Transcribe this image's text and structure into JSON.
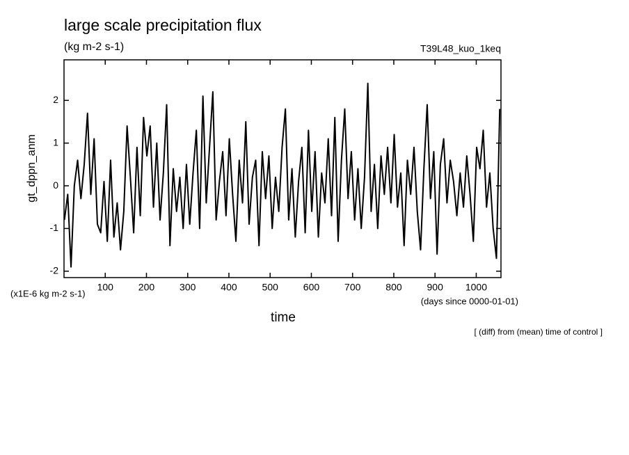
{
  "chart_data": {
    "type": "line",
    "title": "large scale precipitation flux",
    "subtitle": "(kg m-2 s-1)",
    "run_label": "T39L48_kuo_1keq",
    "y_label": "gt_dppn_anm",
    "y_unit": "(x1E-6 kg m-2 s-1)",
    "x_label": "time",
    "x_unit": "(days since 0000-01-01)",
    "annotation": "[ (diff) from (mean) time of control ]",
    "color": "#000000",
    "xlim": [
      0,
      1060
    ],
    "ylim": [
      -2.15,
      2.95
    ],
    "xticks": [
      100,
      200,
      300,
      400,
      500,
      600,
      700,
      800,
      900,
      1000
    ],
    "yticks": [
      -2,
      -1,
      0,
      1,
      2
    ],
    "x": [
      1,
      9,
      17,
      25,
      33,
      41,
      49,
      57,
      65,
      73,
      81,
      89,
      97,
      105,
      113,
      121,
      129,
      137,
      145,
      153,
      161,
      169,
      177,
      185,
      193,
      201,
      209,
      217,
      225,
      233,
      241,
      249,
      257,
      265,
      273,
      281,
      289,
      297,
      305,
      313,
      321,
      329,
      337,
      345,
      353,
      361,
      369,
      377,
      385,
      393,
      401,
      409,
      417,
      425,
      433,
      441,
      449,
      457,
      465,
      473,
      481,
      489,
      497,
      505,
      513,
      521,
      529,
      537,
      545,
      553,
      561,
      569,
      577,
      585,
      593,
      601,
      609,
      617,
      625,
      633,
      641,
      649,
      657,
      665,
      673,
      681,
      689,
      697,
      705,
      713,
      721,
      729,
      737,
      745,
      753,
      761,
      769,
      777,
      785,
      793,
      801,
      809,
      817,
      825,
      833,
      841,
      849,
      857,
      865,
      873,
      881,
      889,
      897,
      905,
      913,
      921,
      929,
      937,
      945,
      953,
      961,
      969,
      977,
      985,
      993,
      1001,
      1009,
      1017,
      1025,
      1033,
      1041,
      1049,
      1057
    ],
    "values": [
      -0.8,
      -0.2,
      -1.9,
      0.0,
      0.6,
      -0.3,
      0.5,
      1.7,
      -0.2,
      1.1,
      -0.9,
      -1.1,
      0.1,
      -1.3,
      0.6,
      -1.2,
      -0.4,
      -1.5,
      -0.6,
      1.4,
      0.2,
      -1.1,
      0.9,
      -0.7,
      1.6,
      0.7,
      1.4,
      -0.5,
      1.0,
      -0.8,
      0.3,
      1.9,
      -1.4,
      0.4,
      -0.6,
      0.2,
      -1.0,
      0.5,
      -0.9,
      0.3,
      1.3,
      -1.0,
      2.1,
      -0.4,
      0.9,
      2.2,
      -0.8,
      0.1,
      0.8,
      -0.7,
      1.1,
      -0.2,
      -1.3,
      0.6,
      -0.4,
      1.5,
      -0.9,
      0.2,
      0.6,
      -1.4,
      0.8,
      -0.3,
      0.7,
      -1.0,
      0.2,
      -0.6,
      0.9,
      1.8,
      -0.8,
      0.4,
      -1.2,
      0.1,
      0.9,
      -1.1,
      1.3,
      -0.6,
      0.8,
      -1.2,
      0.3,
      -0.4,
      1.1,
      -0.7,
      1.6,
      -1.3,
      0.6,
      1.8,
      -0.3,
      0.8,
      -0.8,
      0.4,
      -1.0,
      0.2,
      2.4,
      -0.6,
      0.5,
      -1.0,
      0.7,
      -0.2,
      0.9,
      -0.4,
      1.2,
      -0.5,
      0.3,
      -1.4,
      0.6,
      -0.2,
      0.9,
      -0.6,
      -1.5,
      0.4,
      1.9,
      -0.3,
      0.8,
      -1.6,
      0.5,
      1.1,
      -0.4,
      0.6,
      0.1,
      -0.7,
      0.3,
      -0.5,
      0.7,
      -0.2,
      -1.3,
      0.9,
      0.4,
      1.3,
      -0.5,
      0.3,
      -1.0,
      -1.7,
      1.8
    ]
  }
}
